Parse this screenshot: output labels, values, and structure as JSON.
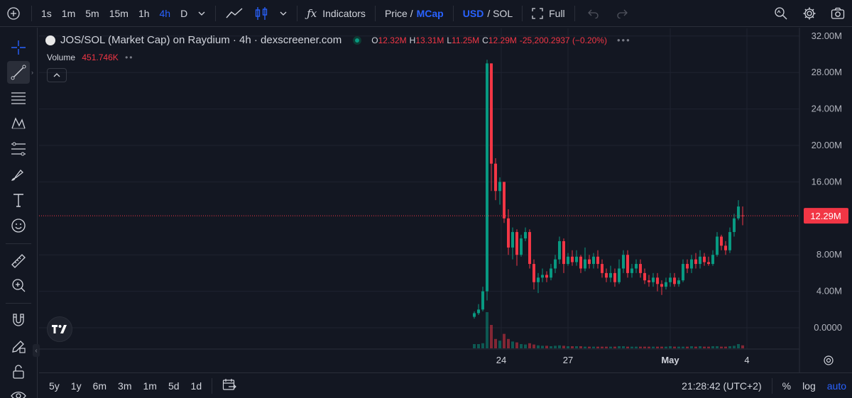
{
  "toolbar": {
    "timeframes": [
      "1s",
      "1m",
      "5m",
      "15m",
      "1h",
      "4h",
      "D"
    ],
    "active_timeframe": "4h",
    "indicators_label": "Indicators",
    "price_label": "Price /",
    "mcap_label": "MCap",
    "usd_label": "USD",
    "sol_label": "/ SOL",
    "full_label": "Full"
  },
  "legend": {
    "title": "JOS/SOL (Market Cap) on Raydium · 4h · dexscreener.com",
    "o_key": "O",
    "o_val": "12.32M",
    "h_key": "H",
    "h_val": "13.31M",
    "l_key": "L",
    "l_val": "11.25M",
    "c_key": "C",
    "c_val": "12.29M",
    "change": "-25,200.2937 (−0.20%)",
    "volume_label": "Volume",
    "volume_val": "451.746K"
  },
  "bottom": {
    "ranges": [
      "5y",
      "1y",
      "6m",
      "3m",
      "1m",
      "5d",
      "1d"
    ],
    "time": "21:28:42 (UTC+2)",
    "percent": "%",
    "log": "log",
    "auto": "auto"
  },
  "colors": {
    "up": "#089981",
    "down": "#f23645",
    "bg": "#131722",
    "grid": "#1f2330",
    "accent": "#2962ff"
  },
  "chart_data": {
    "type": "candlestick",
    "ylabel_ticks": [
      "32.00M",
      "28.00M",
      "24.00M",
      "20.00M",
      "16.00M",
      "12.29M",
      "8.00M",
      "4.00M",
      "0.0000"
    ],
    "ylim": [
      0,
      32
    ],
    "unit": "M",
    "x_ticks": [
      {
        "label": "24",
        "index": 4
      },
      {
        "label": "27",
        "index": 22
      },
      {
        "label": "May",
        "index": 46,
        "bold": true
      },
      {
        "label": "4",
        "index": 64
      }
    ],
    "current_price": 12.29,
    "current_price_label": "12.29M",
    "candles": [
      [
        1.2,
        1.6,
        1.0,
        1.8
      ],
      [
        1.6,
        2.0,
        1.4,
        2.6
      ],
      [
        2.0,
        4.0,
        1.8,
        4.5
      ],
      [
        4.0,
        29.0,
        3.0,
        29.4
      ],
      [
        29.0,
        18.0,
        15.0,
        29.0
      ],
      [
        18.0,
        15.0,
        14.0,
        18.6
      ],
      [
        15.0,
        16.0,
        13.5,
        16.5
      ],
      [
        16.0,
        12.0,
        11.5,
        16.0
      ],
      [
        12.0,
        8.8,
        8.0,
        13.0
      ],
      [
        8.8,
        10.5,
        7.5,
        11.0
      ],
      [
        10.5,
        8.0,
        6.8,
        10.8
      ],
      [
        8.0,
        9.8,
        7.8,
        10.2
      ],
      [
        9.8,
        10.5,
        9.5,
        11.0
      ],
      [
        10.5,
        7.0,
        6.5,
        10.8
      ],
      [
        7.0,
        5.0,
        4.2,
        7.5
      ],
      [
        5.0,
        5.5,
        3.8,
        6.0
      ],
      [
        5.5,
        5.8,
        5.0,
        6.5
      ],
      [
        5.8,
        5.5,
        5.0,
        6.2
      ],
      [
        5.5,
        6.5,
        5.2,
        7.0
      ],
      [
        6.5,
        7.5,
        6.0,
        8.0
      ],
      [
        7.5,
        9.5,
        7.0,
        10.0
      ],
      [
        9.5,
        7.0,
        6.0,
        9.8
      ],
      [
        7.0,
        7.8,
        6.8,
        8.2
      ],
      [
        7.8,
        7.2,
        6.8,
        8.5
      ],
      [
        7.2,
        7.8,
        6.8,
        8.5
      ],
      [
        7.8,
        6.5,
        6.0,
        8.0
      ],
      [
        6.5,
        7.5,
        6.2,
        8.8
      ],
      [
        7.5,
        7.0,
        6.5,
        8.0
      ],
      [
        7.0,
        7.8,
        6.5,
        8.2
      ],
      [
        7.8,
        7.0,
        6.5,
        8.5
      ],
      [
        7.0,
        6.0,
        5.5,
        7.5
      ],
      [
        6.0,
        5.5,
        5.0,
        6.5
      ],
      [
        5.5,
        6.0,
        5.0,
        6.8
      ],
      [
        6.0,
        5.0,
        4.5,
        6.5
      ],
      [
        5.0,
        6.5,
        4.8,
        7.5
      ],
      [
        6.5,
        8.0,
        6.0,
        8.5
      ],
      [
        8.0,
        6.0,
        5.5,
        8.5
      ],
      [
        6.0,
        6.5,
        5.5,
        7.0
      ],
      [
        6.5,
        7.0,
        6.0,
        7.5
      ],
      [
        7.0,
        6.0,
        5.5,
        7.5
      ],
      [
        6.0,
        5.2,
        4.8,
        6.5
      ],
      [
        5.2,
        5.0,
        4.5,
        5.8
      ],
      [
        5.0,
        5.5,
        4.5,
        6.0
      ],
      [
        5.5,
        4.8,
        4.0,
        6.0
      ],
      [
        4.8,
        4.5,
        3.6,
        5.2
      ],
      [
        4.5,
        5.0,
        4.2,
        5.5
      ],
      [
        5.0,
        5.5,
        4.5,
        6.0
      ],
      [
        5.5,
        4.8,
        4.5,
        6.0
      ],
      [
        4.8,
        5.2,
        4.5,
        5.5
      ],
      [
        5.2,
        7.0,
        5.0,
        7.5
      ],
      [
        7.0,
        6.5,
        6.0,
        7.5
      ],
      [
        6.5,
        7.5,
        6.0,
        8.0
      ],
      [
        7.5,
        7.0,
        6.5,
        8.2
      ],
      [
        7.0,
        7.8,
        6.5,
        8.5
      ],
      [
        7.8,
        7.2,
        6.8,
        8.2
      ],
      [
        7.2,
        7.0,
        6.8,
        7.8
      ],
      [
        7.0,
        8.0,
        6.8,
        8.5
      ],
      [
        8.0,
        10.0,
        7.8,
        10.5
      ],
      [
        10.0,
        9.0,
        8.5,
        10.2
      ],
      [
        9.0,
        8.5,
        8.0,
        9.5
      ],
      [
        8.5,
        10.5,
        8.2,
        11.0
      ],
      [
        10.5,
        12.0,
        10.0,
        12.5
      ],
      [
        12.0,
        13.3,
        11.8,
        14.0
      ],
      [
        12.32,
        12.29,
        11.25,
        13.31
      ]
    ],
    "volumes": [
      0.1,
      0.1,
      0.12,
      0.85,
      0.55,
      0.22,
      0.18,
      0.34,
      0.22,
      0.16,
      0.14,
      0.1,
      0.09,
      0.12,
      0.09,
      0.07,
      0.06,
      0.06,
      0.05,
      0.06,
      0.07,
      0.06,
      0.05,
      0.05,
      0.05,
      0.05,
      0.04,
      0.04,
      0.04,
      0.04,
      0.04,
      0.04,
      0.04,
      0.04,
      0.05,
      0.05,
      0.04,
      0.04,
      0.04,
      0.04,
      0.04,
      0.04,
      0.04,
      0.04,
      0.04,
      0.04,
      0.05,
      0.04,
      0.04,
      0.04,
      0.04,
      0.05,
      0.04,
      0.05,
      0.04,
      0.04,
      0.05,
      0.05,
      0.04,
      0.04,
      0.05,
      0.06,
      0.1,
      0.07
    ]
  }
}
